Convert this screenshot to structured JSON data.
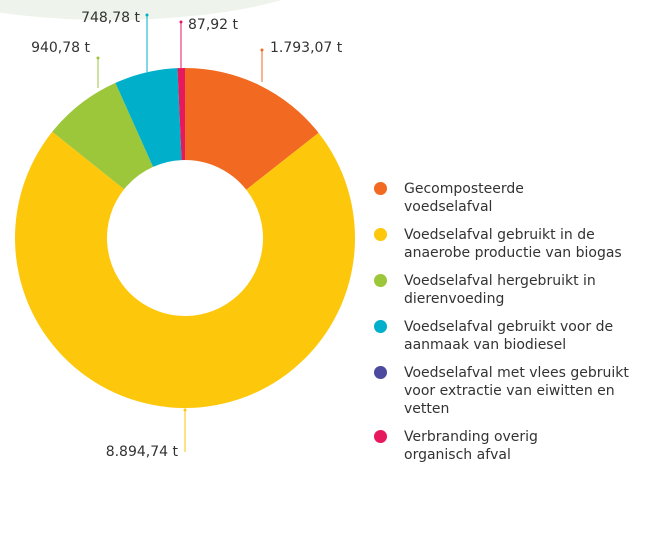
{
  "chart_data": {
    "type": "donut",
    "categories": [
      "Gecomposteerde voedselafval",
      "Voedselafval gebruikt in de anaerobe productie van biogas",
      "Voedselafval hergebruikt in dierenvoeding",
      "Voedselafval gebruikt voor de aanmaak van biodiesel",
      "Voedselafval met vlees gebruikt voor extractie van eiwitten en vetten",
      "Verbranding overig organisch afval"
    ],
    "values": [
      1793.07,
      8894.74,
      940.78,
      748.78,
      0,
      87.92
    ],
    "value_labels": [
      "1.793,07 t",
      "8.894,74 t",
      "940,78 t",
      "748,78 t",
      null,
      "87,92 t"
    ],
    "colors": [
      "#f26a21",
      "#fdc70c",
      "#9dc73b",
      "#00b0ca",
      "#4b4a9e",
      "#e6195f"
    ],
    "legend": "right"
  }
}
